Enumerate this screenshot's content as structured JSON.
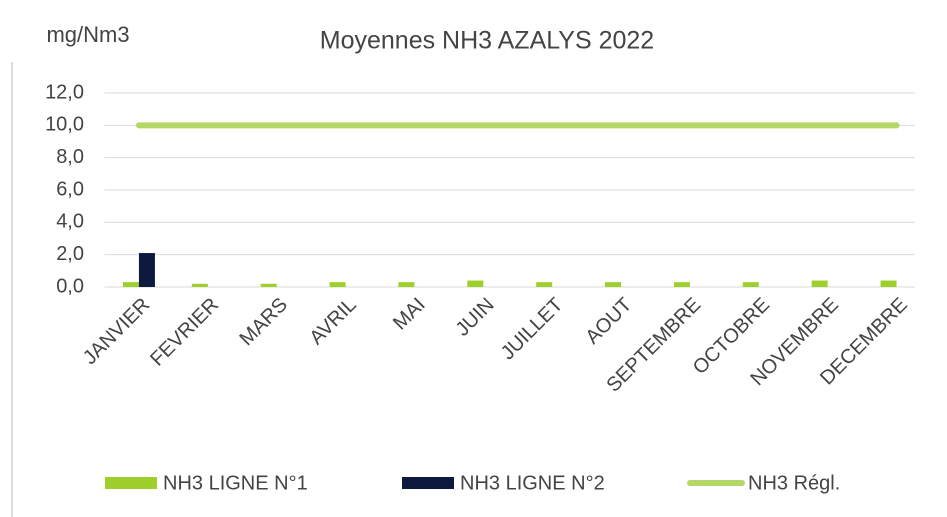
{
  "chart_data": {
    "type": "bar",
    "title": "Moyennes NH3 AZALYS 2022",
    "y_axis_label": "mg/Nm3",
    "categories": [
      "JANVIER",
      "FEVRIER",
      "MARS",
      "AVRIL",
      "MAI",
      "JUIN",
      "JUILLET",
      "AOUT",
      "SEPTEMBRE",
      "OCTOBRE",
      "NOVEMBRE",
      "DECEMBRE"
    ],
    "series": [
      {
        "name": "NH3 LIGNE N°1",
        "type": "bar",
        "color": "#9fcf2a",
        "values": [
          0.3,
          0.2,
          0.2,
          0.3,
          0.3,
          0.4,
          0.3,
          0.3,
          0.3,
          0.3,
          0.4,
          0.4
        ]
      },
      {
        "name": "NH3 LIGNE N°2",
        "type": "bar",
        "color": "#0e1a3d",
        "values": [
          2.1,
          null,
          null,
          null,
          null,
          null,
          null,
          null,
          null,
          null,
          null,
          null
        ]
      },
      {
        "name": "NH3 Régl.",
        "type": "line",
        "color": "#b3d865",
        "values": [
          10,
          10,
          10,
          10,
          10,
          10,
          10,
          10,
          10,
          10,
          10,
          10
        ]
      }
    ],
    "ylim": [
      0,
      12
    ],
    "yticks": [
      {
        "value": 0,
        "label": "0,0"
      },
      {
        "value": 2,
        "label": "2,0"
      },
      {
        "value": 4,
        "label": "4,0"
      },
      {
        "value": 6,
        "label": "6,0"
      },
      {
        "value": 8,
        "label": "8,0"
      },
      {
        "value": 10,
        "label": "10,0"
      },
      {
        "value": 12,
        "label": "12,0"
      }
    ],
    "grid": true,
    "legend": "bottom"
  }
}
